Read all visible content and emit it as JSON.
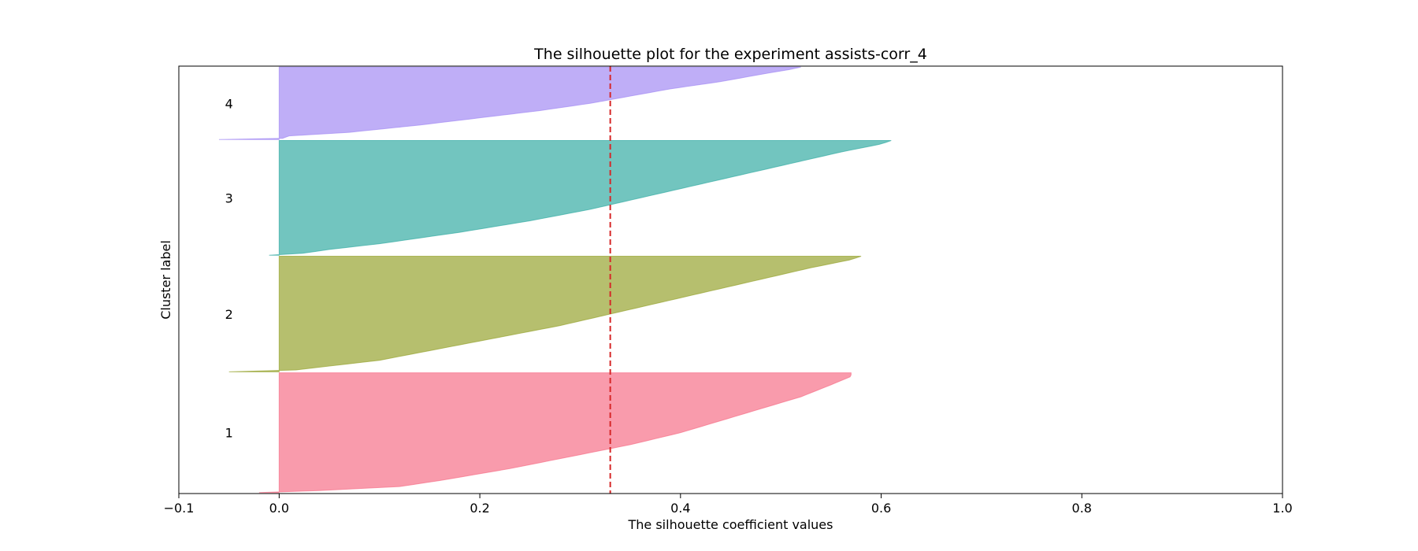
{
  "chart_data": {
    "type": "area",
    "title": "The silhouette plot for the experiment assists-corr_4",
    "xlabel": "The silhouette coefficient values",
    "ylabel": "Cluster label",
    "xlim": [
      -0.1,
      1.0
    ],
    "xticks": [
      -0.1,
      0.0,
      0.2,
      0.4,
      0.6,
      0.8,
      1.0
    ],
    "xtick_labels": [
      "−0.1",
      "0.0",
      "0.2",
      "0.4",
      "0.6",
      "0.8",
      "1.0"
    ],
    "average_silhouette_score": 0.33,
    "average_line_color": "#d62728",
    "grid": false,
    "legend": "none",
    "series": [
      {
        "cluster_label": "1",
        "color": "#f77189",
        "size": 1190,
        "min": -0.02,
        "max": 0.57,
        "profile": [
          [
            0.0,
            0.0
          ],
          [
            0.05,
            0.12
          ],
          [
            0.1,
            0.16
          ],
          [
            0.2,
            0.23
          ],
          [
            0.3,
            0.29
          ],
          [
            0.4,
            0.35
          ],
          [
            0.5,
            0.4
          ],
          [
            0.6,
            0.44
          ],
          [
            0.7,
            0.48
          ],
          [
            0.8,
            0.52
          ],
          [
            0.9,
            0.55
          ],
          [
            0.97,
            0.57
          ],
          [
            1.0,
            0.57
          ]
        ]
      },
      {
        "cluster_label": "2",
        "color": "#97a431",
        "size": 1150,
        "min": -0.05,
        "max": 0.58,
        "profile": [
          [
            0.0,
            0.0
          ],
          [
            0.04,
            0.04
          ],
          [
            0.1,
            0.1
          ],
          [
            0.2,
            0.16
          ],
          [
            0.3,
            0.22
          ],
          [
            0.4,
            0.28
          ],
          [
            0.5,
            0.33
          ],
          [
            0.6,
            0.38
          ],
          [
            0.7,
            0.43
          ],
          [
            0.8,
            0.48
          ],
          [
            0.9,
            0.53
          ],
          [
            0.97,
            0.57
          ],
          [
            1.0,
            0.58
          ]
        ]
      },
      {
        "cluster_label": "3",
        "color": "#36ada4",
        "size": 1140,
        "min": -0.01,
        "max": 0.61,
        "profile": [
          [
            0.0,
            0.01
          ],
          [
            0.05,
            0.05
          ],
          [
            0.1,
            0.1
          ],
          [
            0.2,
            0.18
          ],
          [
            0.3,
            0.25
          ],
          [
            0.4,
            0.31
          ],
          [
            0.5,
            0.36
          ],
          [
            0.6,
            0.41
          ],
          [
            0.7,
            0.46
          ],
          [
            0.8,
            0.51
          ],
          [
            0.9,
            0.56
          ],
          [
            0.97,
            0.6
          ],
          [
            1.0,
            0.61
          ]
        ]
      },
      {
        "cluster_label": "4",
        "color": "#a48cf4",
        "size": 720,
        "min": -0.06,
        "max": 0.52,
        "profile": [
          [
            0.0,
            0.0
          ],
          [
            0.05,
            0.01
          ],
          [
            0.1,
            0.07
          ],
          [
            0.2,
            0.14
          ],
          [
            0.3,
            0.2
          ],
          [
            0.4,
            0.26
          ],
          [
            0.5,
            0.31
          ],
          [
            0.6,
            0.35
          ],
          [
            0.7,
            0.39
          ],
          [
            0.8,
            0.44
          ],
          [
            0.9,
            0.48
          ],
          [
            0.97,
            0.51
          ],
          [
            1.0,
            0.52
          ]
        ]
      }
    ]
  }
}
